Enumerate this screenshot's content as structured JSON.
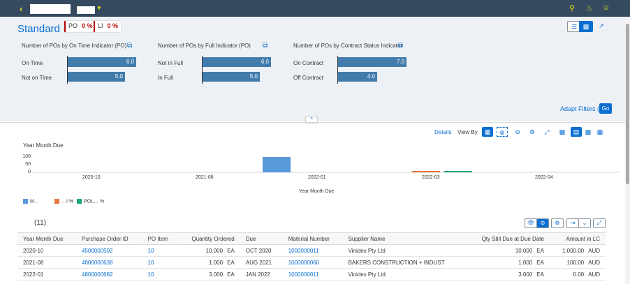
{
  "shell": {
    "back_icon": "chevron-left-icon",
    "icons": [
      "search-icon",
      "bell-icon",
      "person-icon"
    ]
  },
  "header": {
    "variant": "Standard",
    "tokens": [
      {
        "label": "PO",
        "pct": "0 %"
      },
      {
        "label": "LI",
        "pct": "0 %"
      }
    ],
    "cards": [
      {
        "title": "Number of POs by On Time Indicator (PO)",
        "bars": [
          {
            "label": "On Time",
            "value": "6.0"
          },
          {
            "label": "Not on Time",
            "value": "5.0"
          }
        ]
      },
      {
        "title": "Number of POs by Full Indicator (PO)",
        "bars": [
          {
            "label": "Not in Full",
            "value": "6.0"
          },
          {
            "label": "In Full",
            "value": "5.0"
          }
        ]
      },
      {
        "title": "Number of POs by Contract Status Indicator",
        "bars": [
          {
            "label": "On Contract",
            "value": "7.0"
          },
          {
            "label": "Off Contract",
            "value": "4.0"
          }
        ]
      }
    ],
    "adapt_filters": "Adapt Filters (1)",
    "go": "Go"
  },
  "chart": {
    "details": "Details",
    "view_by": "View By",
    "title": "Year Month Due",
    "xlabel": "Year Month Due"
  },
  "chart_data": {
    "type": "bar",
    "categories": [
      "2020-10",
      "2021-08",
      "2022-01",
      "2022-03",
      "2022-04"
    ],
    "ylim": [
      0,
      100
    ],
    "yticks": [
      "100",
      "50",
      "0"
    ],
    "series": [
      {
        "color": "#5899da",
        "values": [
          0,
          0,
          100,
          0,
          0
        ]
      },
      {
        "color": "#e8743b",
        "values": [
          0,
          0,
          0,
          1,
          0
        ]
      },
      {
        "color": "#19a979",
        "values": [
          0,
          0,
          0,
          1,
          0
        ]
      }
    ]
  },
  "legend": [
    {
      "label": "M…",
      "color": "#5899da"
    },
    {
      "label": "…I %",
      "color": "#e8743b"
    },
    {
      "label": "POL… %",
      "color": "#19a979"
    }
  ],
  "table": {
    "count": "(11)",
    "columns": [
      "Year Month Due",
      "Purchase Order ID",
      "PO Item",
      "Quantity Ordered",
      "Due",
      "Material Number",
      "Supplier Name",
      "Qty Still Due at Due Date",
      "Amount in LC"
    ],
    "rows": [
      {
        "ymd": "2020-10",
        "po": "4500000502",
        "item": "10",
        "qty": "10.000",
        "qty_unit": "EA",
        "due": "OCT 2020",
        "mat": "1000000011",
        "supplier": "Vinidex Pty Ltd",
        "still": "10.000",
        "still_unit": "EA",
        "amt": "1,000.00",
        "cur": "AUD"
      },
      {
        "ymd": "2021-08",
        "po": "4800000638",
        "item": "10",
        "qty": "1.000",
        "qty_unit": "EA",
        "due": "AUG 2021",
        "mat": "1000000060",
        "supplier": "BAKERS CONSTRUCTION + INDUST",
        "still": "1.000",
        "still_unit": "EA",
        "amt": "100.00",
        "cur": "AUD"
      },
      {
        "ymd": "2022-01",
        "po": "4800000682",
        "item": "10",
        "qty": "3.000",
        "qty_unit": "EA",
        "due": "JAN 2022",
        "mat": "1000000011",
        "supplier": "Vinidex Pty Ltd",
        "still": "3.000",
        "still_unit": "EA",
        "amt": "0.00",
        "cur": "AUD"
      }
    ]
  }
}
